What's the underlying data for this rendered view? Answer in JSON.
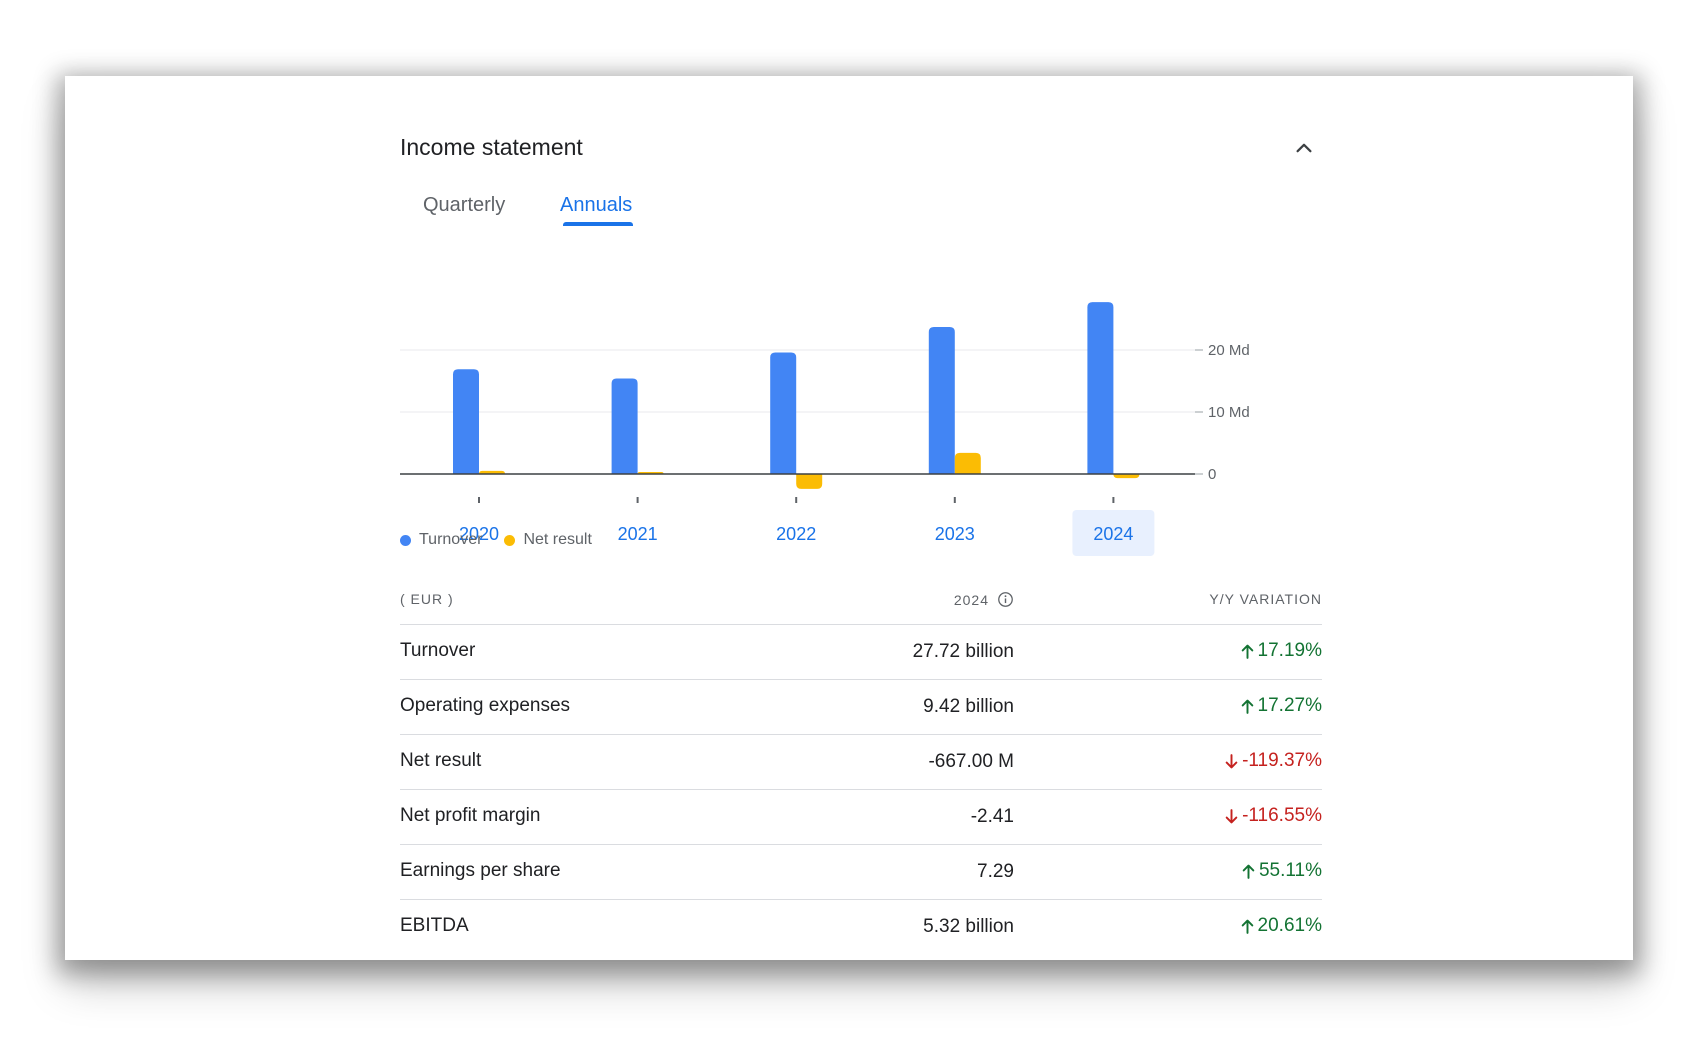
{
  "card": {
    "title": "Income statement",
    "tabs": [
      {
        "label": "Quarterly",
        "active": false
      },
      {
        "label": "Annuals",
        "active": true
      }
    ]
  },
  "chart_data": {
    "type": "bar",
    "categories": [
      "2020",
      "2021",
      "2022",
      "2023",
      "2024"
    ],
    "selected_category": "2024",
    "series": [
      {
        "name": "Turnover",
        "color": "#4285f4",
        "values": [
          16.9,
          15.4,
          19.6,
          23.7,
          27.72
        ]
      },
      {
        "name": "Net result",
        "color": "#fbbc04",
        "values": [
          0.5,
          0.2,
          -2.4,
          3.4,
          -0.667
        ]
      }
    ],
    "y_ticks": [
      {
        "value": 0,
        "label": "0"
      },
      {
        "value": 10,
        "label": "10 Md"
      },
      {
        "value": 20,
        "label": "20 Md"
      }
    ],
    "ylim": [
      -3,
      30
    ],
    "grid": true,
    "legend_position": "bottom-left"
  },
  "table": {
    "header": {
      "currency": "( EUR )",
      "period": "2024",
      "variation": "Y/Y VARIATION"
    },
    "rows": [
      {
        "label": "Turnover",
        "value": "27.72 billion",
        "change": "17.19%",
        "direction": "up"
      },
      {
        "label": "Operating expenses",
        "value": "9.42 billion",
        "change": "17.27%",
        "direction": "up"
      },
      {
        "label": "Net result",
        "value": "-667.00 M",
        "change": "-119.37%",
        "direction": "down"
      },
      {
        "label": "Net profit margin",
        "value": "-2.41",
        "change": "-116.55%",
        "direction": "down"
      },
      {
        "label": "Earnings per share",
        "value": "7.29",
        "change": "55.11%",
        "direction": "up"
      },
      {
        "label": "EBITDA",
        "value": "5.32 billion",
        "change": "20.61%",
        "direction": "up"
      }
    ]
  },
  "colors": {
    "up": "#137333",
    "down": "#c5221f",
    "accent": "#1a73e8",
    "selected_bg": "#e8f0fe"
  },
  "icons": {
    "collapse": "chevron-up-icon",
    "info": "info-icon",
    "up": "arrow-up-icon",
    "down": "arrow-down-icon"
  }
}
